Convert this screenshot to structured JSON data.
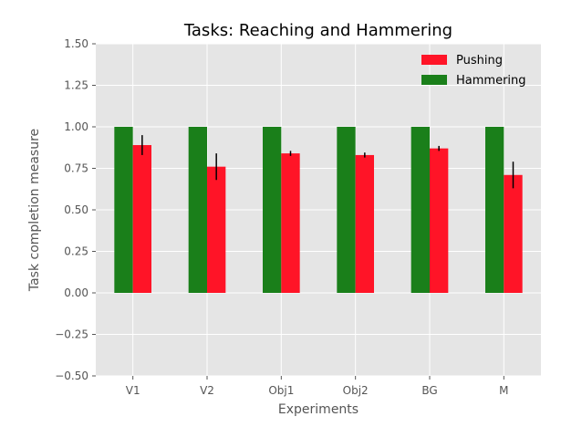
{
  "chart_data": {
    "type": "bar",
    "title": "Tasks: Reaching and Hammering",
    "xlabel": "Experiments",
    "ylabel": "Task completion measure",
    "categories": [
      "V1",
      "V2",
      "Obj1",
      "Obj2",
      "BG",
      "M"
    ],
    "ylim": [
      -0.5,
      1.5
    ],
    "yticks": [
      -0.5,
      -0.25,
      0.0,
      0.25,
      0.5,
      0.75,
      1.0,
      1.25,
      1.5
    ],
    "ytick_labels": [
      "−0.50",
      "−0.25",
      "0.00",
      "0.25",
      "0.50",
      "0.75",
      "1.00",
      "1.25",
      "1.50"
    ],
    "grid": true,
    "legend_position": "top-right",
    "series": [
      {
        "name": "Hammering",
        "color": "#1a7f1a",
        "values": [
          1.0,
          1.0,
          1.0,
          1.0,
          1.0,
          1.0
        ],
        "errors": [
          0,
          0,
          0,
          0,
          0,
          0
        ]
      },
      {
        "name": "Pushing",
        "color": "#ff1427",
        "values": [
          0.89,
          0.76,
          0.84,
          0.83,
          0.87,
          0.71
        ],
        "errors": [
          0.06,
          0.08,
          0.015,
          0.015,
          0.015,
          0.08
        ]
      }
    ],
    "legend_order": [
      1,
      0
    ]
  }
}
